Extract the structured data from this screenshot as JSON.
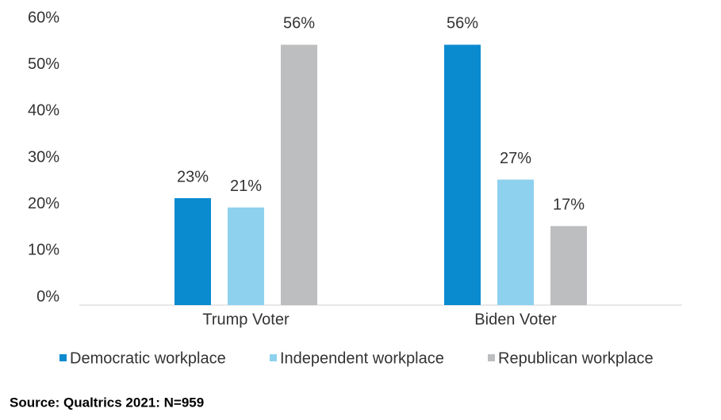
{
  "chart_data": {
    "type": "bar",
    "categories": [
      "Trump Voter",
      "Biden Voter"
    ],
    "series": [
      {
        "name": "Democratic workplace",
        "color": "#0a8bd0",
        "values": [
          23,
          56
        ],
        "value_labels": [
          "23%",
          "56%"
        ]
      },
      {
        "name": "Independent workplace",
        "color": "#8ed1ee",
        "values": [
          21,
          27
        ],
        "value_labels": [
          "21%",
          "27%"
        ]
      },
      {
        "name": "Republican workplace",
        "color": "#bdbec0",
        "values": [
          56,
          17
        ],
        "value_labels": [
          "56%",
          "17%"
        ]
      }
    ],
    "ylim": [
      0,
      60
    ],
    "yticks": [
      {
        "value": 0,
        "label": "0%"
      },
      {
        "value": 10,
        "label": "10%"
      },
      {
        "value": 20,
        "label": "20%"
      },
      {
        "value": 30,
        "label": "30%"
      },
      {
        "value": 40,
        "label": "40%"
      },
      {
        "value": 50,
        "label": "50%"
      },
      {
        "value": 60,
        "label": "60%"
      }
    ],
    "grid": false,
    "legend": "bottom",
    "source": "Source: Qualtrics 2021: N=959"
  }
}
